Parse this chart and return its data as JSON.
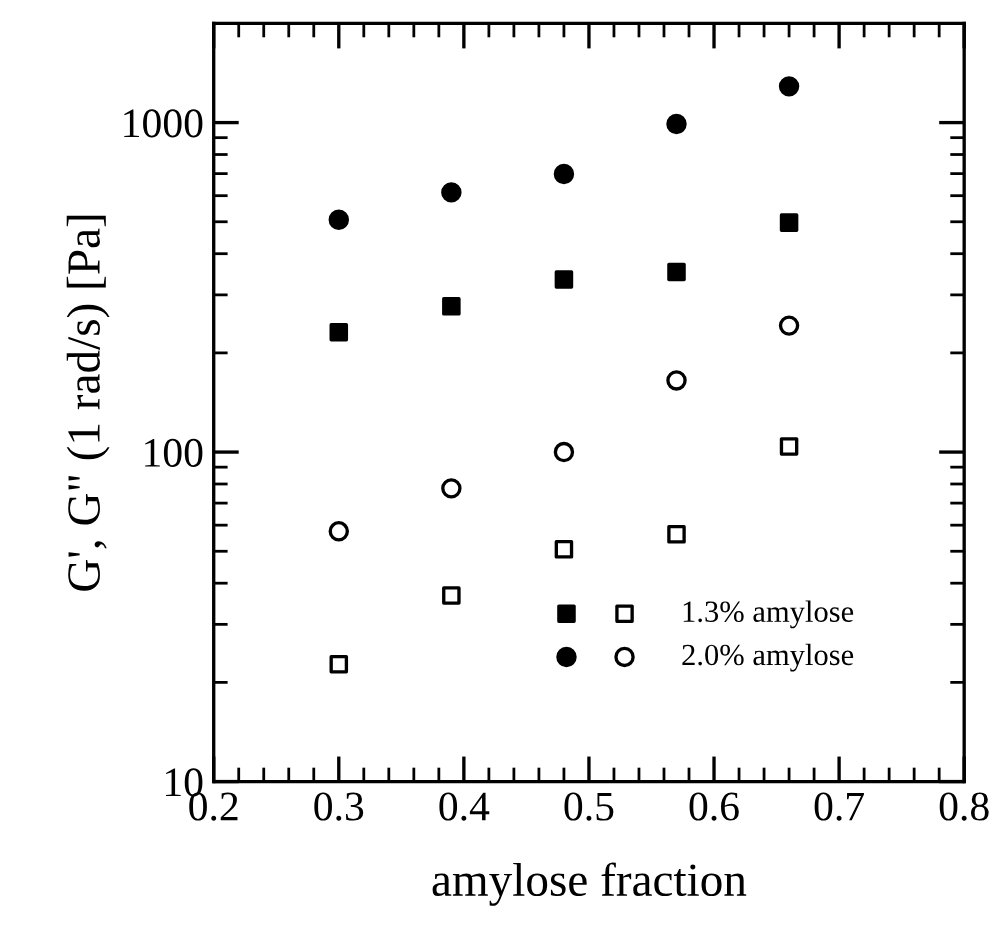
{
  "chart_data": {
    "type": "scatter",
    "xlabel": "amylose fraction",
    "ylabel": "G', G\" (1 rad/s) [Pa]",
    "x": [
      0.3,
      0.39,
      0.48,
      0.57,
      0.66
    ],
    "series": [
      {
        "color": "#000000",
        "marker": "square",
        "values": [
          231,
          277,
          334,
          352,
          497
        ]
      },
      {
        "name": "1.3% amylose",
        "color": "#ffffff",
        "marker": "square",
        "values": [
          22.7,
          36.7,
          50.7,
          56.3,
          104
        ]
      },
      {
        "color": "#000000",
        "marker": "circle",
        "values": [
          507,
          614,
          698,
          990,
          1288
        ]
      },
      {
        "name": "2.0% amylose",
        "color": "#ffffff",
        "marker": "circle",
        "values": [
          57.5,
          77.6,
          100,
          165,
          242
        ]
      }
    ],
    "log": "y",
    "xlim": [
      0.2,
      0.8
    ],
    "xticks": [
      0.2,
      0.3,
      0.4,
      0.5,
      0.6,
      0.7,
      0.8
    ],
    "ylim": [
      10,
      2000
    ],
    "yticks": [
      10,
      100,
      1000
    ],
    "grid": false,
    "legend": "bottom right"
  }
}
